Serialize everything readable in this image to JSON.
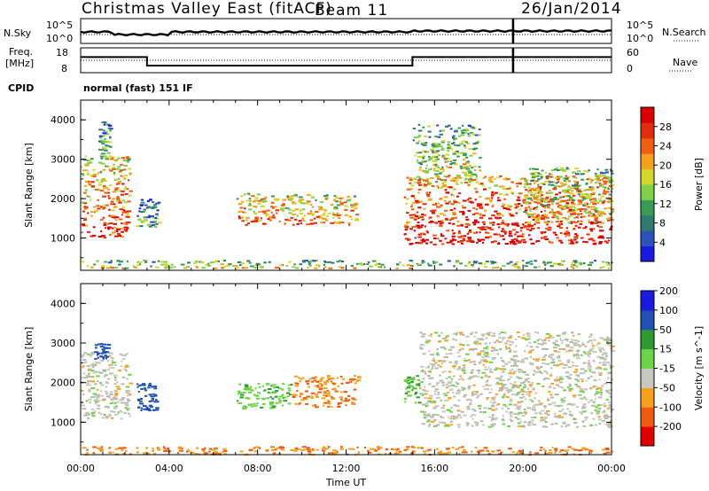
{
  "header": {
    "station": "Christmas Valley East (fitACF)",
    "beam": "Beam 11",
    "date": "26/Jan/2014"
  },
  "top_panels": {
    "nsky_label": "N.Sky",
    "nsearch_label": "N.Search",
    "noise_ticks": [
      "10^5",
      "10^0"
    ],
    "freq_label_line1": "Freq.",
    "freq_label_line2": "[MHz]",
    "freq_ticks": [
      "18",
      "8"
    ],
    "nave_label": "Nave",
    "nave_ticks": [
      "60",
      "0"
    ],
    "cpid_label": "CPID",
    "cpid_text": "normal (fast) 151 IF"
  },
  "time_ticks": [
    "00:00",
    "04:00",
    "08:00",
    "12:00",
    "16:00",
    "20:00",
    "00:00"
  ],
  "x_axis_label": "Time UT",
  "y_axis_label": "Slant Range [km]",
  "range_ticks": [
    "1000",
    "2000",
    "3000",
    "4000"
  ],
  "colors": {
    "power_scale": [
      "#1a1adf",
      "#2a52b8",
      "#2e7a6e",
      "#3b9a55",
      "#7fcf4a",
      "#d2d62e",
      "#f2a21c",
      "#ef5f12",
      "#e02d0c",
      "#d80000"
    ],
    "velocity_scale": [
      "#e00000",
      "#ee5a10",
      "#f7a020",
      "#c8c8c0",
      "#b8b8b0",
      "#6cd34a",
      "#2f9a2f",
      "#2050b0",
      "#1a1adf"
    ]
  },
  "chart_data": [
    {
      "type": "heatmap",
      "title": "",
      "xlabel": "",
      "ylabel": "Slant Range [km]",
      "quantity_label": "Power [dB]",
      "x_range_hours": [
        0,
        24
      ],
      "y_range_km": [
        180,
        4500
      ],
      "colorbar": {
        "ticks": [
          4,
          8,
          12,
          16,
          20,
          24,
          28
        ],
        "tick_labels": [
          "4",
          "8",
          "12",
          "16",
          "20",
          "24",
          "28"
        ],
        "range": [
          0,
          32
        ]
      },
      "echo_regions": [
        {
          "t_start": 0.0,
          "t_end": 2.2,
          "range_min_km": 1000,
          "range_max_km": 3100,
          "typical_value": 22
        },
        {
          "t_start": 0.8,
          "t_end": 1.3,
          "range_min_km": 3000,
          "range_max_km": 4000,
          "typical_value": 10
        },
        {
          "t_start": 2.5,
          "t_end": 3.5,
          "range_min_km": 1300,
          "range_max_km": 2000,
          "typical_value": 8
        },
        {
          "t_start": 7.0,
          "t_end": 12.5,
          "range_min_km": 1350,
          "range_max_km": 2150,
          "typical_value": 20
        },
        {
          "t_start": 14.6,
          "t_end": 24.0,
          "range_min_km": 850,
          "range_max_km": 2600,
          "typical_value": 26
        },
        {
          "t_start": 15.0,
          "t_end": 18.0,
          "range_min_km": 2400,
          "range_max_km": 3900,
          "typical_value": 14
        },
        {
          "t_start": 20.0,
          "t_end": 24.0,
          "range_min_km": 1400,
          "range_max_km": 2800,
          "typical_value": 16
        },
        {
          "t_start": 0.0,
          "t_end": 24.0,
          "range_min_km": 250,
          "range_max_km": 450,
          "typical_value": 14
        }
      ]
    },
    {
      "type": "heatmap",
      "title": "",
      "xlabel": "Time UT",
      "ylabel": "Slant Range [km]",
      "quantity_label": "Velocity [m s^-1]",
      "x_range_hours": [
        0,
        24
      ],
      "y_range_km": [
        180,
        4500
      ],
      "colorbar": {
        "ticks": [
          -200,
          -100,
          -50,
          -15,
          15,
          50,
          100,
          200
        ],
        "tick_labels": [
          "-200",
          "-100",
          "-50",
          "-15",
          "15",
          "50",
          "100",
          "200"
        ]
      },
      "echo_regions": [
        {
          "t_start": 0.0,
          "t_end": 2.2,
          "range_min_km": 1100,
          "range_max_km": 2800,
          "typical_value": 0
        },
        {
          "t_start": 0.6,
          "t_end": 1.2,
          "range_min_km": 2600,
          "range_max_km": 3000,
          "typical_value": 120
        },
        {
          "t_start": 2.5,
          "t_end": 3.5,
          "range_min_km": 1300,
          "range_max_km": 2000,
          "typical_value": 120
        },
        {
          "t_start": 7.0,
          "t_end": 9.5,
          "range_min_km": 1350,
          "range_max_km": 2000,
          "typical_value": 40
        },
        {
          "t_start": 9.5,
          "t_end": 12.5,
          "range_min_km": 1400,
          "range_max_km": 2200,
          "typical_value": -45
        },
        {
          "t_start": 14.6,
          "t_end": 15.3,
          "range_min_km": 1500,
          "range_max_km": 2200,
          "typical_value": 40
        },
        {
          "t_start": 15.3,
          "t_end": 24.0,
          "range_min_km": 900,
          "range_max_km": 3300,
          "typical_value": 0
        },
        {
          "t_start": 0.0,
          "t_end": 24.0,
          "range_min_km": 200,
          "range_max_km": 400,
          "typical_value": -50
        }
      ]
    }
  ]
}
